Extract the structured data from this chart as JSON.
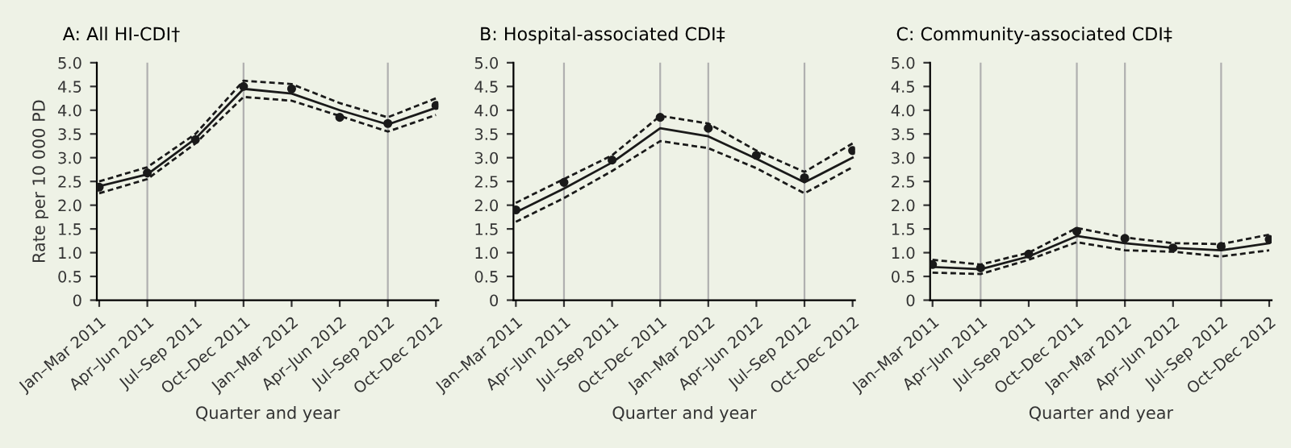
{
  "chart_data": [
    {
      "type": "line",
      "title": "A: All HI-CDI†",
      "xlabel": "Quarter and year",
      "ylabel": "Rate per 10 000 PD",
      "categories": [
        "Jan–Mar 2011",
        "Apr–Jun 2011",
        "Jul–Sep 2011",
        "Oct–Dec 2011",
        "Jan–Mar 2012",
        "Apr–Jun 2012",
        "Jul–Sep 2012",
        "Oct–Dec 2012"
      ],
      "ylim": [
        0,
        5
      ],
      "yticks": [
        0,
        0.5,
        {
          "value": 1,
          "label": "1.0"
        },
        1.5,
        {
          "value": 2,
          "label": "2.0"
        },
        2.5,
        {
          "value": 3,
          "label": "3.0"
        },
        3.5,
        {
          "value": 4,
          "label": "4.0"
        },
        4.5,
        {
          "value": 5,
          "label": "5.0"
        }
      ],
      "ref_lines": [
        {
          "axis": "x",
          "value": "Apr–Jun 2011",
          "color": "#b0b0b0"
        },
        {
          "axis": "x",
          "value": "Oct–Dec 2011",
          "color": "#b0b0b0"
        },
        {
          "axis": "x",
          "value": "Jul–Sep 2012",
          "color": "#b0b0b0"
        }
      ],
      "series": [
        {
          "color": "#1a1a1a",
          "line_style": "solid",
          "values": [
            2.4,
            2.65,
            3.4,
            4.45,
            4.35,
            4.0,
            3.7,
            4.05
          ]
        },
        {
          "color": "#1a1a1a",
          "line_style": "dashed",
          "values": [
            2.5,
            2.8,
            3.5,
            4.62,
            4.55,
            4.15,
            3.85,
            4.25
          ]
        },
        {
          "color": "#1a1a1a",
          "line_style": "dashed",
          "values": [
            2.25,
            2.55,
            3.3,
            4.28,
            4.2,
            3.88,
            3.55,
            3.9
          ]
        },
        {
          "type": "scatter",
          "color": "#1a1a1a",
          "marker": "circle",
          "values": [
            2.38,
            2.68,
            3.38,
            4.5,
            4.45,
            3.85,
            3.72,
            4.1
          ]
        }
      ]
    },
    {
      "type": "line",
      "title": "B: Hospital-associated CDI‡",
      "xlabel": "Quarter and year",
      "categories": [
        "Jan–Mar 2011",
        "Apr–Jun 2011",
        "Jul–Sep 2011",
        "Oct–Dec 2011",
        "Jan–Mar 2012",
        "Apr–Jun 2012",
        "Jul–Sep 2012",
        "Oct–Dec 2012"
      ],
      "ylim": [
        0,
        5
      ],
      "yticks": [
        0,
        0.5,
        {
          "value": 1,
          "label": "1.0"
        },
        1.5,
        {
          "value": 2,
          "label": "2.0"
        },
        2.5,
        {
          "value": 3,
          "label": "3.0"
        },
        3.5,
        {
          "value": 4,
          "label": "4.0"
        },
        4.5,
        {
          "value": 5,
          "label": "5.0"
        }
      ],
      "ref_lines": [
        {
          "axis": "x",
          "value": "Apr–Jun 2011",
          "color": "#b0b0b0"
        },
        {
          "axis": "x",
          "value": "Oct–Dec 2011",
          "color": "#b0b0b0"
        },
        {
          "axis": "x",
          "value": "Jan–Mar 2012",
          "color": "#b0b0b0"
        },
        {
          "axis": "x",
          "value": "Jul–Sep 2012",
          "color": "#b0b0b0"
        }
      ],
      "series": [
        {
          "color": "#1a1a1a",
          "line_style": "solid",
          "values": [
            1.85,
            2.35,
            2.9,
            3.62,
            3.45,
            2.98,
            2.48,
            3.0
          ]
        },
        {
          "color": "#1a1a1a",
          "line_style": "dashed",
          "values": [
            2.05,
            2.55,
            3.05,
            3.88,
            3.72,
            3.15,
            2.7,
            3.3
          ]
        },
        {
          "color": "#1a1a1a",
          "line_style": "dashed",
          "values": [
            1.65,
            2.15,
            2.72,
            3.35,
            3.2,
            2.78,
            2.25,
            2.8
          ]
        },
        {
          "type": "scatter",
          "color": "#1a1a1a",
          "marker": "circle",
          "values": [
            1.9,
            2.48,
            2.95,
            3.85,
            3.62,
            3.05,
            2.58,
            3.15
          ]
        }
      ]
    },
    {
      "type": "line",
      "title": "C: Community-associated CDI‡",
      "xlabel": "Quarter and year",
      "categories": [
        "Jan–Mar 2011",
        "Apr–Jun 2011",
        "Jul–Sep 2011",
        "Oct–Dec 2011",
        "Jan–Mar 2012",
        "Apr–Jun 2012",
        "Jul–Sep 2012",
        "Oct–Dec 2012"
      ],
      "ylim": [
        0,
        5
      ],
      "yticks": [
        0,
        0.5,
        {
          "value": 1,
          "label": "1.0"
        },
        1.5,
        {
          "value": 2,
          "label": "2.0"
        },
        2.5,
        {
          "value": 3,
          "label": "3.0"
        },
        3.5,
        {
          "value": 4,
          "label": "4.0"
        },
        4.5,
        {
          "value": 5,
          "label": "5.0"
        }
      ],
      "ref_lines": [
        {
          "axis": "x",
          "value": "Apr–Jun 2011",
          "color": "#b0b0b0"
        },
        {
          "axis": "x",
          "value": "Oct–Dec 2011",
          "color": "#b0b0b0"
        },
        {
          "axis": "x",
          "value": "Jan–Mar 2012",
          "color": "#b0b0b0"
        },
        {
          "axis": "x",
          "value": "Jul–Sep 2012",
          "color": "#b0b0b0"
        }
      ],
      "series": [
        {
          "color": "#1a1a1a",
          "line_style": "solid",
          "values": [
            0.7,
            0.65,
            0.92,
            1.35,
            1.2,
            1.1,
            1.05,
            1.2
          ]
        },
        {
          "color": "#1a1a1a",
          "line_style": "dashed",
          "values": [
            0.85,
            0.75,
            1.0,
            1.52,
            1.32,
            1.2,
            1.18,
            1.38
          ]
        },
        {
          "color": "#1a1a1a",
          "line_style": "dashed",
          "values": [
            0.58,
            0.55,
            0.85,
            1.22,
            1.05,
            1.02,
            0.92,
            1.05
          ]
        },
        {
          "type": "scatter",
          "color": "#1a1a1a",
          "marker": "circle",
          "values": [
            0.75,
            0.68,
            0.97,
            1.45,
            1.3,
            1.1,
            1.13,
            1.28
          ]
        }
      ]
    }
  ]
}
